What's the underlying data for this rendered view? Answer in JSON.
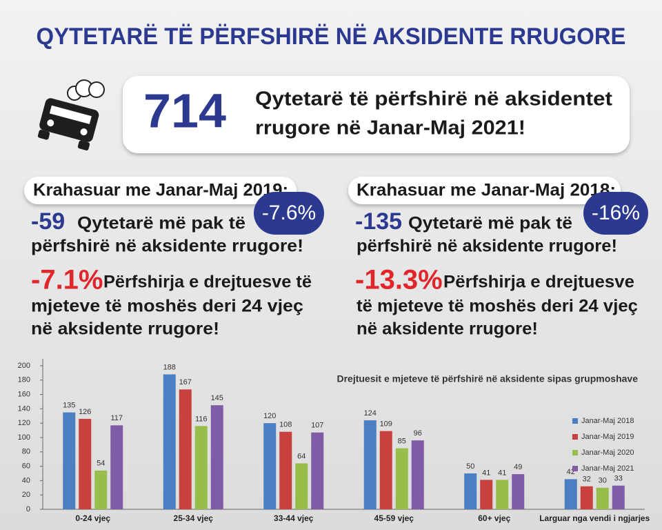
{
  "header": {
    "title": "QYTETARË TË PËRFSHIRË NË AKSIDENTE RRUGORE"
  },
  "headline": {
    "number": "714",
    "lines": [
      "Qytetarë të përfshirë në aksidentet",
      "rrugore në Janar-Maj 2021!"
    ]
  },
  "comparisons": [
    {
      "heading": "Krahasuar me Janar-Maj 2019:",
      "badge": "-7.6%",
      "change": "-59",
      "change_text": "Qytetarë më pak të",
      "change_text2": "përfshirë në aksidente rrugore!",
      "stat": "-7.1%",
      "stat_lines": [
        "Përfshirja e drejtuesve të",
        "mjeteve të moshës deri 24 vjeç",
        "në aksidente rrugore!"
      ]
    },
    {
      "heading": "Krahasuar me Janar-Maj 2018:",
      "badge": "-16%",
      "change": "-135",
      "change_text": "Qytetarë më pak të",
      "change_text2": "përfshirë në aksidente rrugore!",
      "stat": "-13.3%",
      "stat_lines": [
        "Përfshirja e drejtuesve",
        "të mjeteve të moshës deri 24 vjeç",
        "në aksidente rrugore!"
      ]
    }
  ],
  "chart_data": {
    "type": "bar",
    "title": "Drejtuesit e mjeteve të përfshirë në aksidente sipas grupmoshave",
    "categories": [
      "0-24 vjeç",
      "25-34 vjeç",
      "33-44 vjeç",
      "45-59 vjeç",
      "60+ vjeç",
      "Larguar nga vendi i ngjarjes"
    ],
    "series": [
      {
        "name": "Janar-Maj 2018",
        "color": "#4a7fc1",
        "values": [
          135,
          188,
          120,
          124,
          50,
          42
        ]
      },
      {
        "name": "Janar-Maj 2019",
        "color": "#c9413f",
        "values": [
          126,
          167,
          108,
          109,
          41,
          32
        ]
      },
      {
        "name": "Janar-Maj 2020",
        "color": "#97be4b",
        "values": [
          54,
          116,
          64,
          85,
          41,
          30
        ]
      },
      {
        "name": "Janar-Maj 2021",
        "color": "#7f5ca5",
        "values": [
          117,
          145,
          107,
          96,
          49,
          33
        ]
      }
    ],
    "ylim": [
      0,
      200
    ],
    "yticks": [
      0,
      20,
      40,
      60,
      80,
      100,
      120,
      140,
      160,
      180,
      200
    ],
    "grid": false,
    "legend": "right"
  }
}
